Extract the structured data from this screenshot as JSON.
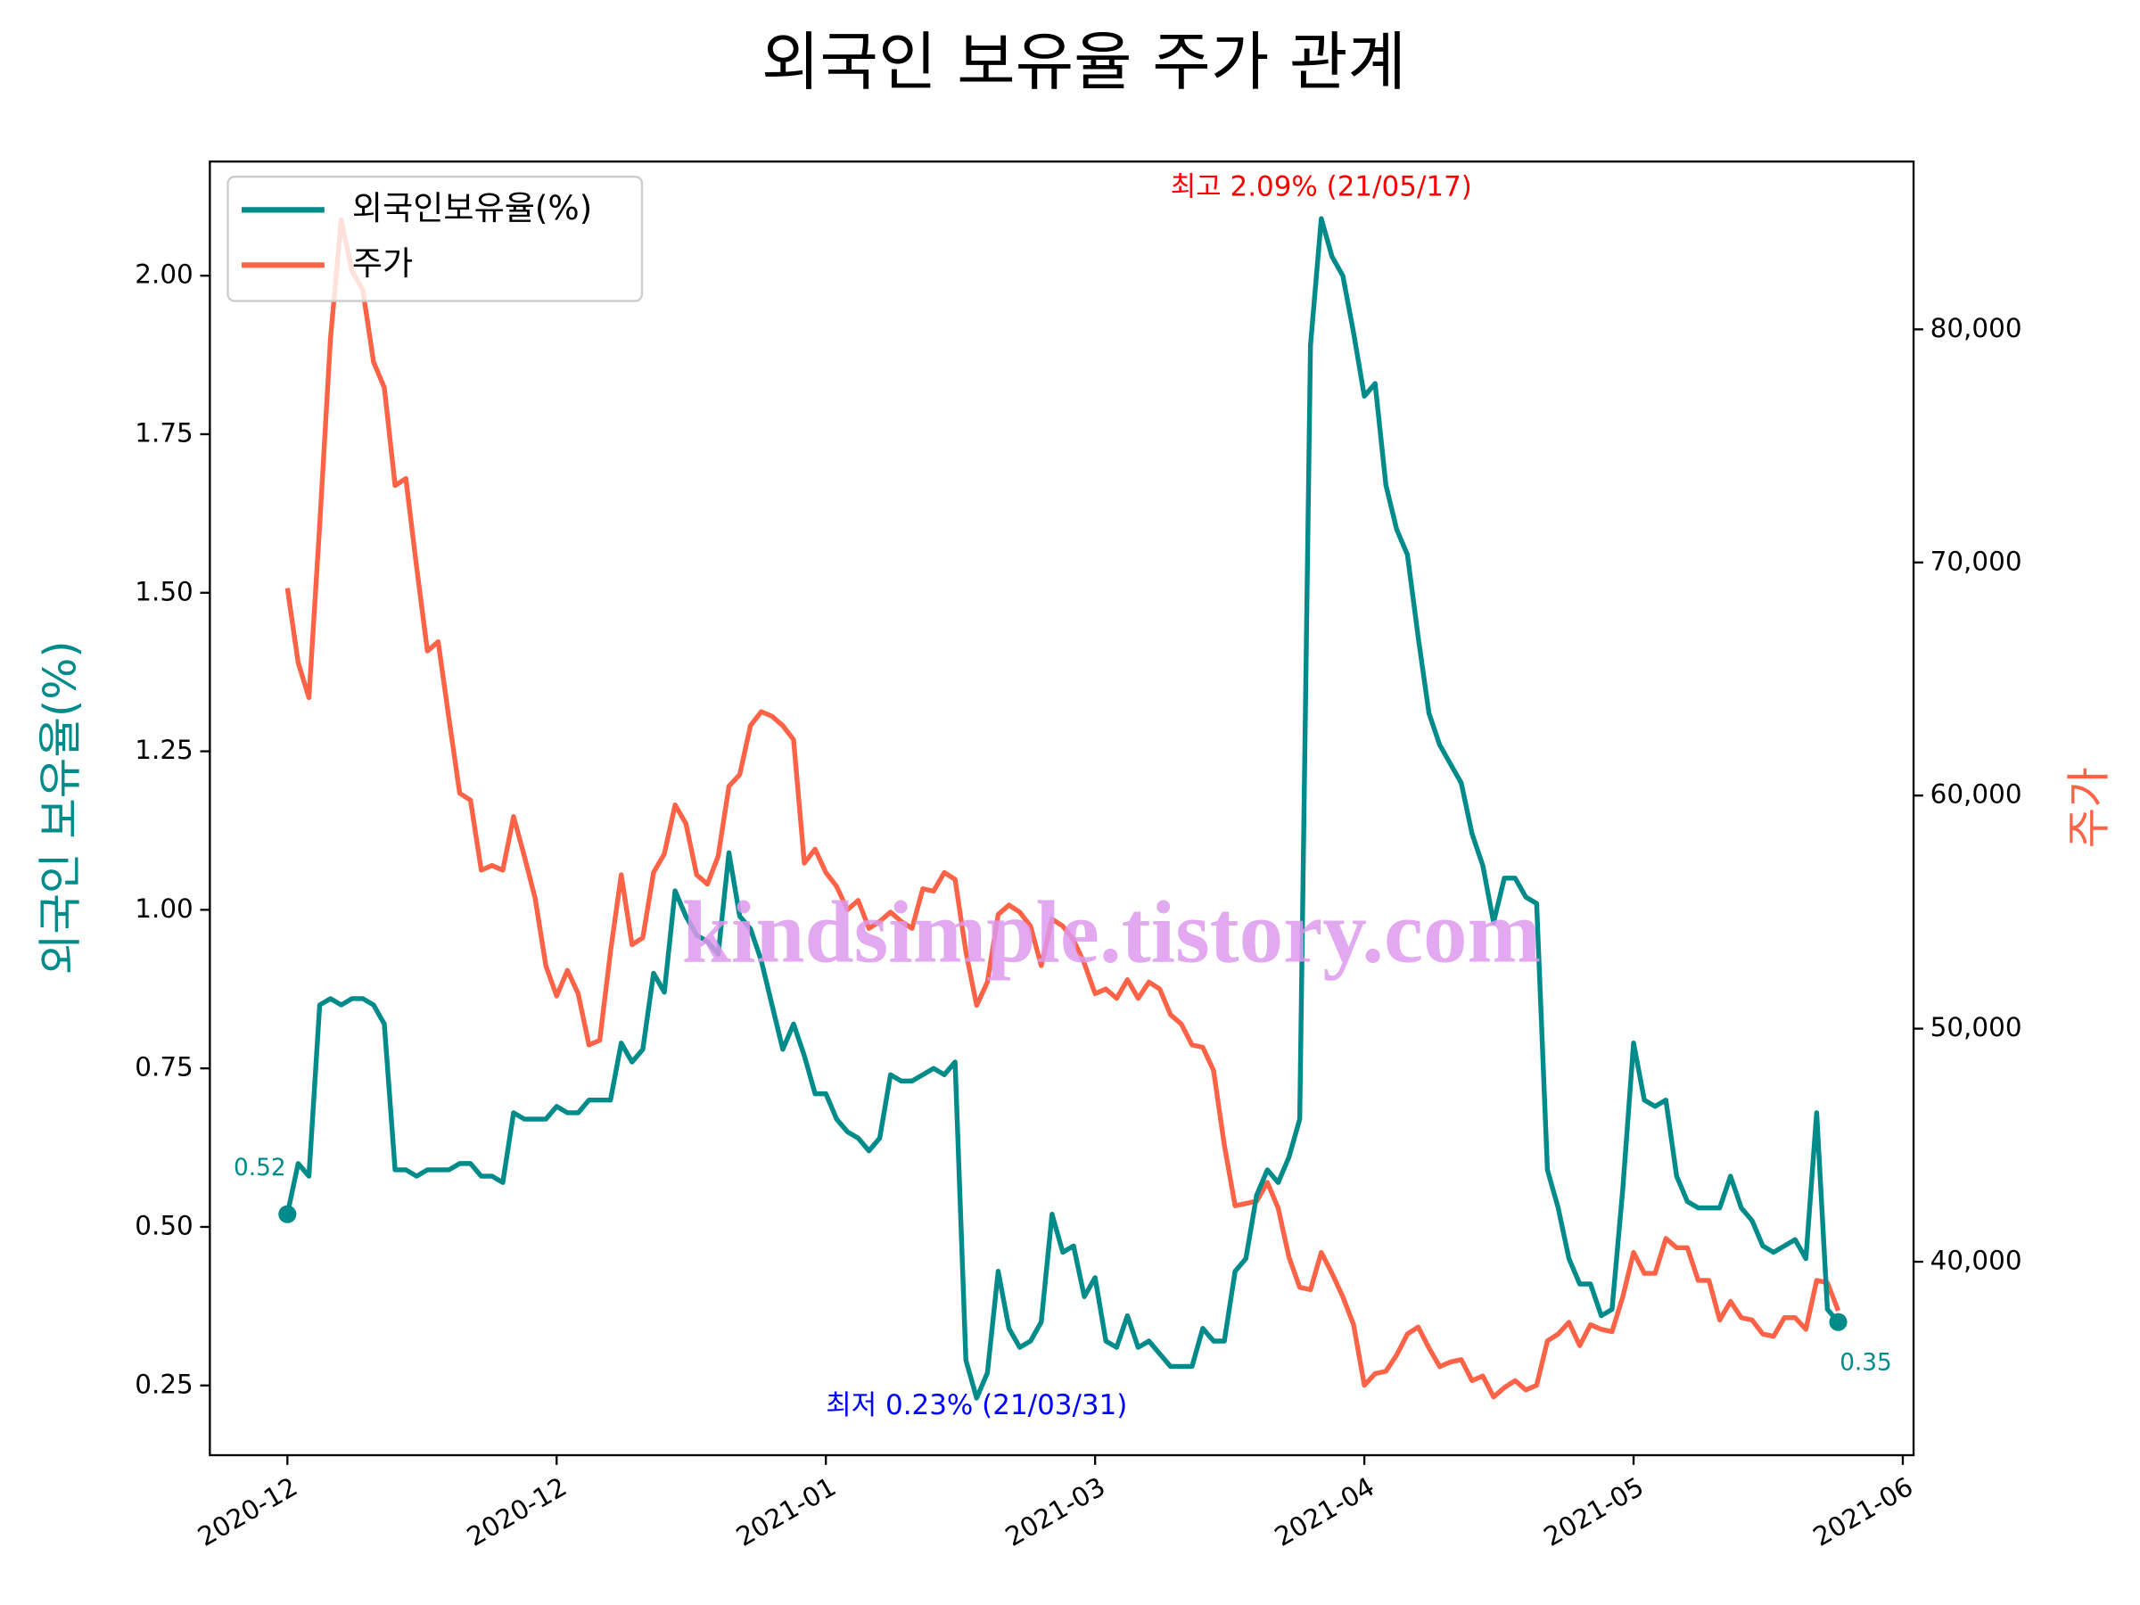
{
  "chart_data": {
    "type": "line",
    "title": "외국인 보유율 주가 관계",
    "ylabel": "외국인 보유율(%)",
    "y2label": "주가",
    "watermark": "kindsimple.tistory.com",
    "legend": "upper left",
    "x": [
      0,
      1,
      2,
      3,
      4,
      5,
      6,
      7,
      8,
      9,
      10,
      11,
      12,
      13,
      14,
      15,
      16,
      17,
      18,
      19,
      20,
      21,
      22,
      23,
      24,
      25,
      26,
      27,
      28,
      29,
      30,
      31,
      32,
      33,
      34,
      35,
      36,
      37,
      38,
      39,
      40,
      41,
      42,
      43,
      44,
      45,
      46,
      47,
      48,
      49,
      50,
      51,
      52,
      53,
      54,
      55,
      56,
      57,
      58,
      59,
      60,
      61,
      62,
      63,
      64,
      65,
      66,
      67,
      68,
      69,
      70,
      71,
      72,
      73,
      74,
      75,
      76,
      77,
      78,
      79,
      80,
      81,
      82,
      83,
      84,
      85,
      86,
      87,
      88,
      89,
      90,
      91,
      92,
      93,
      94,
      95,
      96,
      97,
      98,
      99,
      100,
      101,
      102,
      103,
      104,
      105,
      106,
      107,
      108,
      109,
      110,
      111,
      112,
      113,
      114,
      115,
      116,
      117,
      118,
      119,
      120,
      121,
      122,
      123,
      124,
      125,
      126,
      127,
      128,
      129,
      130,
      131,
      132,
      133,
      134,
      135,
      136,
      137,
      138,
      139,
      140,
      141,
      142,
      143,
      144
    ],
    "xlim": [
      -7.2,
      151
    ],
    "xticks": [
      {
        "value": 0,
        "label": "2020-12"
      },
      {
        "value": 25,
        "label": "2020-12"
      },
      {
        "value": 50,
        "label": "2021-01"
      },
      {
        "value": 75,
        "label": "2021-03"
      },
      {
        "value": 100,
        "label": "2021-04"
      },
      {
        "value": 125,
        "label": "2021-05"
      },
      {
        "value": 150,
        "label": "2021-06"
      }
    ],
    "ylim": [
      0.14,
      2.18
    ],
    "yticks": [
      0.25,
      {
        "value": 0.5,
        "label": "0.50"
      },
      0.75,
      {
        "value": 1,
        "label": "1.00"
      },
      1.25,
      {
        "value": 1.5,
        "label": "1.50"
      },
      1.75,
      {
        "value": 2,
        "label": "2.00"
      }
    ],
    "y2lim": [
      31700,
      87200
    ],
    "y2ticks": [
      {
        "value": 40000,
        "label": "40,000"
      },
      {
        "value": 50000,
        "label": "50,000"
      },
      {
        "value": 60000,
        "label": "60,000"
      },
      {
        "value": 70000,
        "label": "70,000"
      },
      {
        "value": 80000,
        "label": "80,000"
      }
    ],
    "annotations": [
      {
        "text": "최고 2.09% (21/05/17)",
        "color": "#ff0000"
      },
      {
        "text": "최저 0.23% (21/03/31)",
        "color": "#0000ff"
      }
    ],
    "series": [
      {
        "name": "외국인보유율(%)",
        "color": "#008b8b",
        "axis": "y",
        "values": [
          0.52,
          0.6,
          0.58,
          0.85,
          0.86,
          0.85,
          0.86,
          0.86,
          0.85,
          0.82,
          0.59,
          0.59,
          0.58,
          0.59,
          0.59,
          0.59,
          0.6,
          0.6,
          0.58,
          0.58,
          0.57,
          0.68,
          0.67,
          0.67,
          0.67,
          0.69,
          0.68,
          0.68,
          0.7,
          0.7,
          0.7,
          0.79,
          0.76,
          0.78,
          0.9,
          0.87,
          1.03,
          0.99,
          0.96,
          0.95,
          0.93,
          1.09,
          0.99,
          0.97,
          0.92,
          0.85,
          0.78,
          0.82,
          0.77,
          0.71,
          0.71,
          0.67,
          0.65,
          0.64,
          0.62,
          0.64,
          0.74,
          0.73,
          0.73,
          0.74,
          0.75,
          0.74,
          0.76,
          0.29,
          0.23,
          0.27,
          0.43,
          0.34,
          0.31,
          0.32,
          0.35,
          0.52,
          0.46,
          0.47,
          0.39,
          0.42,
          0.32,
          0.31,
          0.36,
          0.31,
          0.32,
          0.3,
          0.28,
          0.28,
          0.28,
          0.34,
          0.32,
          0.32,
          0.43,
          0.45,
          0.55,
          0.59,
          0.57,
          0.61,
          0.67,
          1.89,
          2.09,
          2.03,
          2.0,
          1.91,
          1.81,
          1.83,
          1.67,
          1.6,
          1.56,
          1.43,
          1.31,
          1.26,
          1.23,
          1.2,
          1.12,
          1.07,
          0.98,
          1.05,
          1.05,
          1.02,
          1.01,
          0.59,
          0.53,
          0.45,
          0.41,
          0.41,
          0.36,
          0.37,
          0.56,
          0.79,
          0.7,
          0.69,
          0.7,
          0.58,
          0.54,
          0.53,
          0.53,
          0.53,
          0.58,
          0.53,
          0.51,
          0.47,
          0.46,
          0.47,
          0.48,
          0.45,
          0.68,
          0.37,
          0.35
        ]
      },
      {
        "name": "주가",
        "color": "#ff6347",
        "axis": "y2",
        "values": [
          68900,
          65700,
          64200,
          71600,
          79600,
          84700,
          82500,
          81700,
          78600,
          77500,
          73300,
          73600,
          69800,
          66200,
          66600,
          63300,
          60100,
          59800,
          56800,
          57000,
          56800,
          59100,
          57400,
          55600,
          52700,
          51400,
          52500,
          51500,
          49300,
          49500,
          53300,
          56600,
          53600,
          53900,
          56700,
          57500,
          59600,
          58800,
          56600,
          56200,
          57400,
          60400,
          60900,
          63000,
          63600,
          63400,
          63000,
          62400,
          57100,
          57700,
          56700,
          56100,
          55100,
          55500,
          54300,
          54600,
          55000,
          54600,
          54300,
          56000,
          55900,
          56700,
          56400,
          53300,
          51000,
          52000,
          54900,
          55300,
          55000,
          54400,
          52700,
          54700,
          54400,
          53800,
          52800,
          51500,
          51700,
          51300,
          52100,
          51300,
          52000,
          51700,
          50600,
          50200,
          49300,
          49200,
          48200,
          45000,
          42400,
          42500,
          42600,
          43400,
          42300,
          40200,
          38900,
          38800,
          40400,
          39500,
          38500,
          37300,
          34700,
          35200,
          35300,
          36000,
          36900,
          37200,
          36300,
          35500,
          35700,
          35800,
          34900,
          35100,
          34200,
          34600,
          34900,
          34500,
          34700,
          36600,
          36900,
          37400,
          36400,
          37300,
          37100,
          37000,
          38500,
          40400,
          39500,
          39500,
          41000,
          40600,
          40600,
          39200,
          39200,
          37500,
          38300,
          37600,
          37500,
          36900,
          36800,
          37600,
          37600,
          37100,
          39200,
          39100,
          37900
        ]
      }
    ]
  }
}
